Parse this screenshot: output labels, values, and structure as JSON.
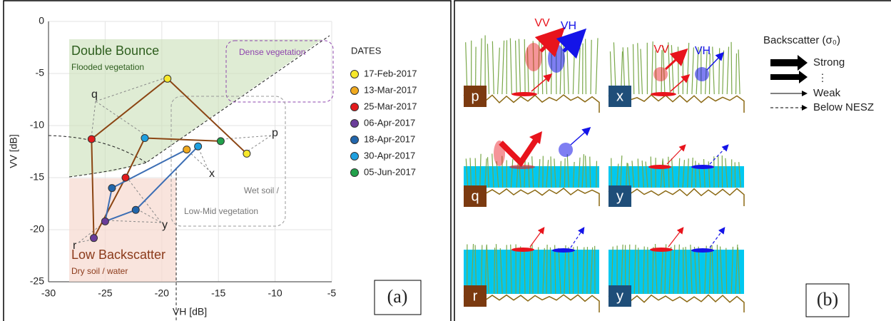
{
  "chart_data": {
    "type": "scatter",
    "x_label": "VH [dB]",
    "y_label": "VV [dB]",
    "xlim": [
      -30,
      -5
    ],
    "ylim": [
      -25,
      0
    ],
    "xticks": [
      -30,
      -25,
      -20,
      -15,
      -10,
      -5
    ],
    "yticks": [
      -25,
      -20,
      -15,
      -10,
      -5,
      0
    ],
    "grid": true,
    "legend": {
      "title": "DATES",
      "entries": [
        {
          "name": "17-Feb-2017",
          "color": "#f7e82a"
        },
        {
          "name": "13-Mar-2017",
          "color": "#f0a91e"
        },
        {
          "name": "25-Mar-2017",
          "color": "#e31a1c"
        },
        {
          "name": "06-Apr-2017",
          "color": "#6a3d9a"
        },
        {
          "name": "18-Apr-2017",
          "color": "#2166ac"
        },
        {
          "name": "30-Apr-2017",
          "color": "#1ea0e0"
        },
        {
          "name": "05-Jun-2017",
          "color": "#22a14b"
        }
      ]
    },
    "series": [
      {
        "color": "#8b4513",
        "x": [
          -12.5,
          -19.5,
          -26.2,
          -26.0,
          -23.2,
          -21.5,
          -14.8
        ],
        "y": [
          -12.7,
          -5.5,
          -11.3,
          -20.8,
          -15.0,
          -11.2,
          -11.5
        ],
        "point_colors": [
          "#f7e82a",
          "#f7e82a",
          "#e31a1c",
          "#6a3d9a",
          "#e31a1c",
          "#1ea0e0",
          "#22a14b"
        ]
      },
      {
        "color": "#3c6eb4",
        "x": [
          -17.8,
          -24.4,
          -25.0,
          -22.3,
          -16.8
        ],
        "y": [
          -12.3,
          -16.0,
          -19.2,
          -18.1,
          -12.0
        ],
        "point_colors": [
          "#f0a91e",
          "#2166ac",
          "#6a3d9a",
          "#2166ac",
          "#1ea0e0"
        ]
      }
    ],
    "regions": {
      "double_bounce": "Double Bounce",
      "flooded": "Flooded vegetation",
      "dense": "Dense vegetation",
      "wet_1": "Wet soil /",
      "wet_2": "Low-Mid vegetation",
      "low": "Low Backscatter",
      "dry": "Dry soil / water"
    },
    "annotations": {
      "q": "q",
      "p": "p",
      "x": "x",
      "r": "r",
      "y": "y"
    },
    "panel_label": "(a)"
  },
  "diagram": {
    "panels": [
      "p",
      "x",
      "q",
      "y",
      "r",
      "y"
    ],
    "polarizations": {
      "vv_1": "VV",
      "vh_1": "VH",
      "vv_2": "VV",
      "vh_2": "VH"
    },
    "legend": {
      "title": "Backscatter (σ₀)",
      "strong": "Strong",
      "dots": "⋮",
      "weak": "Weak",
      "below": "Below NESZ"
    },
    "panel_label": "(b)"
  }
}
